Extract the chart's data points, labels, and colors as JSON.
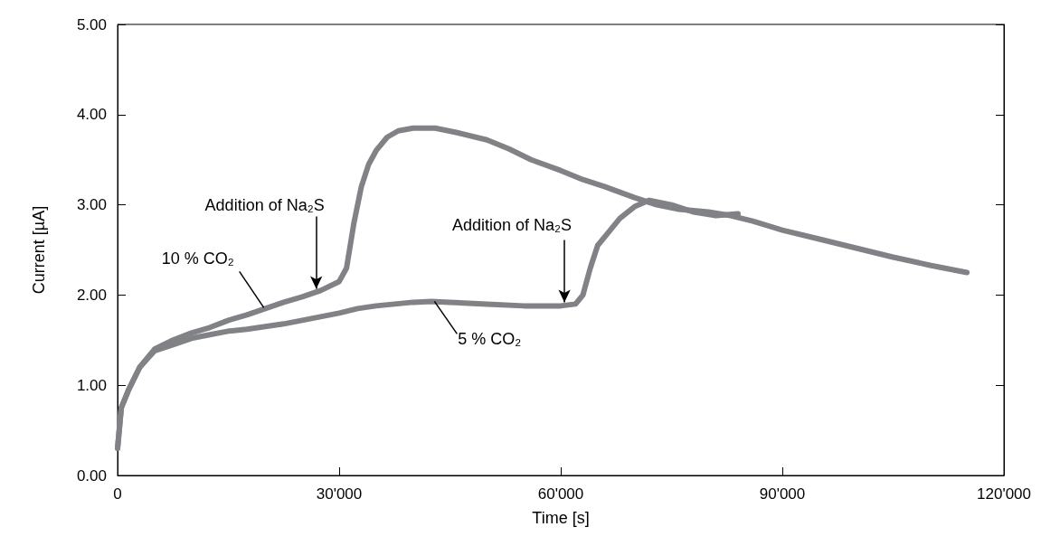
{
  "chart_data": {
    "type": "line",
    "xlabel": "Time [s]",
    "ylabel": "Current [µA]",
    "xlim": [
      0,
      120000
    ],
    "xticks": [
      0,
      {
        "value": 30000,
        "label": "30'000"
      },
      {
        "value": 60000,
        "label": "60'000"
      },
      {
        "value": 90000,
        "label": "90'000"
      },
      {
        "value": 120000,
        "label": "120'000"
      }
    ],
    "ylim": [
      0,
      5
    ],
    "yticks": [
      {
        "value": 0,
        "label": "0.00"
      },
      {
        "value": 1,
        "label": "1.00"
      },
      {
        "value": 2,
        "label": "2.00"
      },
      {
        "value": 3,
        "label": "3.00"
      },
      {
        "value": 4,
        "label": "4.00"
      },
      {
        "value": 5,
        "label": "5.00"
      }
    ],
    "grid": false,
    "marker": "none",
    "line_style": "solid",
    "series": [
      {
        "color": "#808285",
        "x": [
          0,
          500,
          1500,
          3000,
          5000,
          7500,
          10000,
          12500,
          15000,
          17500,
          20000,
          22500,
          25000,
          27500,
          30000,
          31000,
          32000,
          33000,
          34000,
          35000,
          36500,
          38000,
          40000,
          43000,
          46000,
          50000,
          53000,
          56000,
          60000,
          63000,
          66000,
          70000,
          73000,
          76000,
          80000,
          83000,
          86000,
          90000,
          95000,
          100000,
          105000,
          110000,
          115000
        ],
        "values": [
          0.3,
          0.75,
          0.95,
          1.2,
          1.4,
          1.5,
          1.58,
          1.64,
          1.72,
          1.78,
          1.85,
          1.92,
          1.98,
          2.05,
          2.15,
          2.3,
          2.8,
          3.2,
          3.45,
          3.6,
          3.75,
          3.82,
          3.85,
          3.85,
          3.8,
          3.72,
          3.62,
          3.5,
          3.38,
          3.28,
          3.2,
          3.08,
          3.0,
          2.95,
          2.92,
          2.88,
          2.82,
          2.72,
          2.62,
          2.52,
          2.42,
          2.33,
          2.25
        ]
      },
      {
        "color": "#808285",
        "x": [
          0,
          500,
          1500,
          3000,
          5000,
          7500,
          10000,
          12500,
          15000,
          17500,
          20000,
          22500,
          25000,
          27500,
          30000,
          32500,
          35000,
          37500,
          40000,
          42500,
          45000,
          47500,
          50000,
          55000,
          60000,
          62000,
          63000,
          64000,
          65000,
          66500,
          68000,
          70000,
          72000,
          75000,
          78000,
          81000,
          84000
        ],
        "values": [
          0.3,
          0.75,
          0.95,
          1.2,
          1.38,
          1.45,
          1.52,
          1.56,
          1.6,
          1.62,
          1.65,
          1.68,
          1.72,
          1.76,
          1.8,
          1.85,
          1.88,
          1.9,
          1.92,
          1.93,
          1.92,
          1.91,
          1.9,
          1.88,
          1.88,
          1.9,
          2.0,
          2.3,
          2.55,
          2.7,
          2.85,
          2.98,
          3.05,
          3.0,
          2.92,
          2.88,
          2.9
        ]
      }
    ],
    "annotations": [
      {
        "text": "Addition of Na₂S",
        "x": 26900,
        "y": 2.03
      },
      {
        "text": "Addition of Na₂S",
        "x": 60500,
        "y": 1.88
      },
      {
        "text": "10 % CO₂",
        "x": 19800,
        "y": 1.86
      },
      {
        "text": "5 % CO₂",
        "x": 42900,
        "y": 1.93
      }
    ]
  }
}
